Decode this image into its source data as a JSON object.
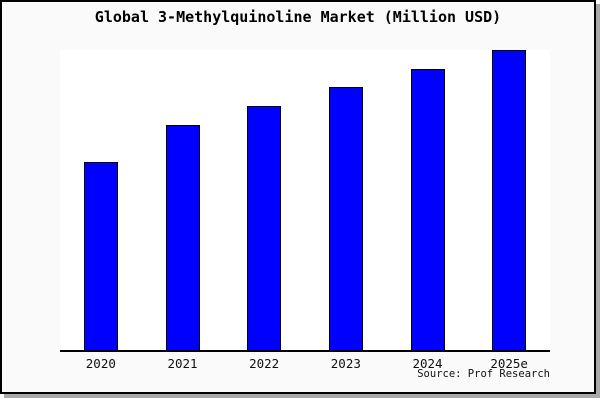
{
  "title": "Global 3-Methylquinoline Market (Million USD)",
  "source": "Source: Prof Research",
  "colors": {
    "bar_fill": "#0000fe",
    "bar_border": "#000000",
    "frame_background": "#fafafa",
    "plot_background": "#ffffff",
    "axis": "#000000",
    "frame_border": "#000000",
    "frame_shadow": "#a9a9a9",
    "text": "#000000"
  },
  "chart_data": {
    "type": "bar",
    "title": "Global 3-Methylquinoline Market (Million USD)",
    "categories": [
      "2020",
      "2021",
      "2022",
      "2023",
      "2024",
      "2025e"
    ],
    "values": [
      62.8,
      75.0,
      81.4,
      87.6,
      93.6,
      100.0
    ],
    "values_unit": "relative height, % of tallest bar (no y-axis or data labels shown)",
    "xlabel": "",
    "ylabel": "",
    "ylim": [
      0,
      100
    ],
    "grid": false,
    "legend": false,
    "y_axis_visible": false,
    "x_axis_visible": true,
    "source_credit": "Source: Prof Research"
  }
}
